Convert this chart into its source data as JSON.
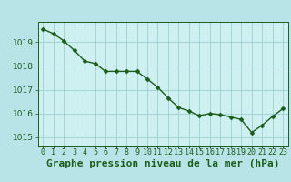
{
  "x": [
    0,
    1,
    2,
    3,
    4,
    5,
    6,
    7,
    8,
    9,
    10,
    11,
    12,
    13,
    14,
    15,
    16,
    17,
    18,
    19,
    20,
    21,
    22,
    23
  ],
  "y": [
    1019.55,
    1019.35,
    1019.05,
    1018.65,
    1018.2,
    1018.1,
    1017.77,
    1017.77,
    1017.77,
    1017.77,
    1017.45,
    1017.1,
    1016.65,
    1016.25,
    1016.1,
    1015.9,
    1016.0,
    1015.95,
    1015.85,
    1015.75,
    1015.2,
    1015.5,
    1015.87,
    1016.2
  ],
  "xlabel": "Graphe pression niveau de la mer (hPa)",
  "xtick_labels": [
    "0",
    "1",
    "2",
    "3",
    "4",
    "5",
    "6",
    "7",
    "8",
    "9",
    "10",
    "11",
    "12",
    "13",
    "14",
    "15",
    "16",
    "17",
    "18",
    "19",
    "20",
    "21",
    "22",
    "23"
  ],
  "ylim": [
    1014.65,
    1019.85
  ],
  "yticks": [
    1015,
    1016,
    1017,
    1018,
    1019
  ],
  "line_color": "#1a5c1a",
  "marker": "D",
  "marker_size": 2.5,
  "bg_color": "#b8e4e8",
  "grid_color": "#9ecece",
  "axis_bg": "#cff0f0",
  "label_color": "#1a5c1a",
  "label_fontsize": 8,
  "tick_fontsize": 6.5,
  "line_width": 1.0
}
